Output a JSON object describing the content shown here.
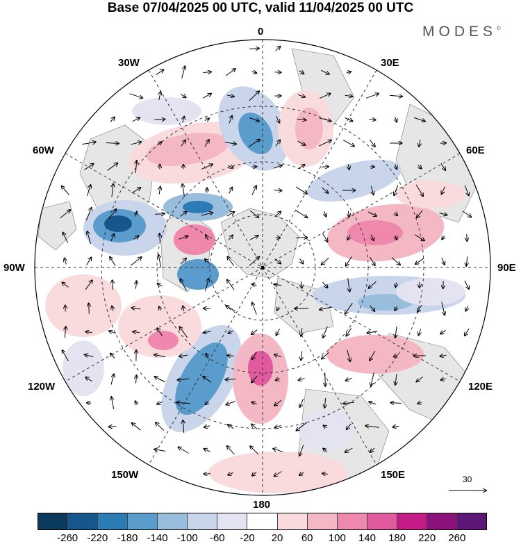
{
  "title": "Base 07/04/2025 00 UTC, valid 11/04/2025 00 UTC",
  "logo_text": "MODES",
  "logo_mark": "©",
  "map": {
    "projection": "north polar stereographic",
    "longitude_labels": {
      "top": "0",
      "bottom": "180",
      "left": "90W",
      "right": "90E",
      "upper_left_1": "30W",
      "upper_left_2": "60W",
      "lower_left_1": "120W",
      "lower_left_2": "150W",
      "upper_right_1": "30E",
      "upper_right_2": "60E",
      "lower_right_1": "120E",
      "lower_right_2": "150E"
    },
    "reference_vector_label": "30"
  },
  "colorbar": {
    "colors": [
      "#0c3a5c",
      "#15578c",
      "#2b7bb5",
      "#5a9ccb",
      "#98bddd",
      "#c8d5ea",
      "#e3e3f1",
      "#ffffff",
      "#f9dadd",
      "#f4b7c4",
      "#ef88ac",
      "#e05a9d",
      "#c41c86",
      "#8e127c",
      "#5c1777"
    ],
    "ticks": [
      "-260",
      "-220",
      "-180",
      "-140",
      "-100",
      "-60",
      "-20",
      "20",
      "60",
      "100",
      "140",
      "180",
      "220",
      "260"
    ]
  }
}
